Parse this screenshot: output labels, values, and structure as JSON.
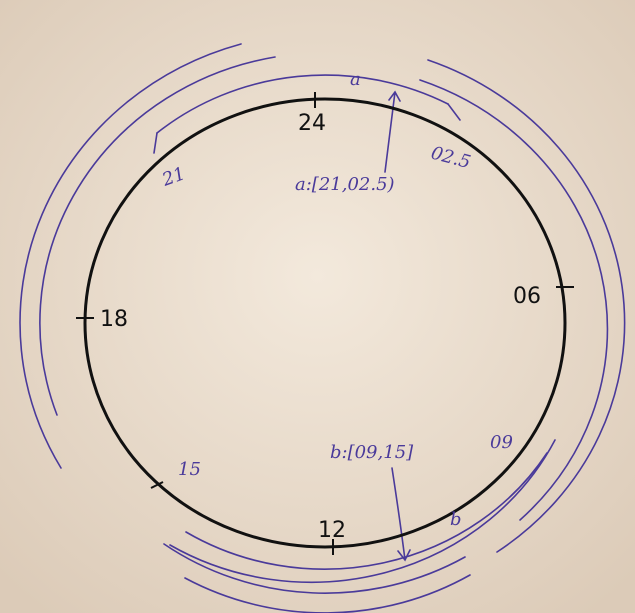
{
  "clock_labels": [
    "24",
    "06",
    "12",
    "18"
  ],
  "annotations": {
    "a_name": "a",
    "a_start": "21",
    "a_end": "02.5",
    "a_interval": "a:[21,02.5)",
    "b_name": "b",
    "b_start": "09",
    "b_end": "15",
    "b_interval": "b:[09,15]"
  }
}
